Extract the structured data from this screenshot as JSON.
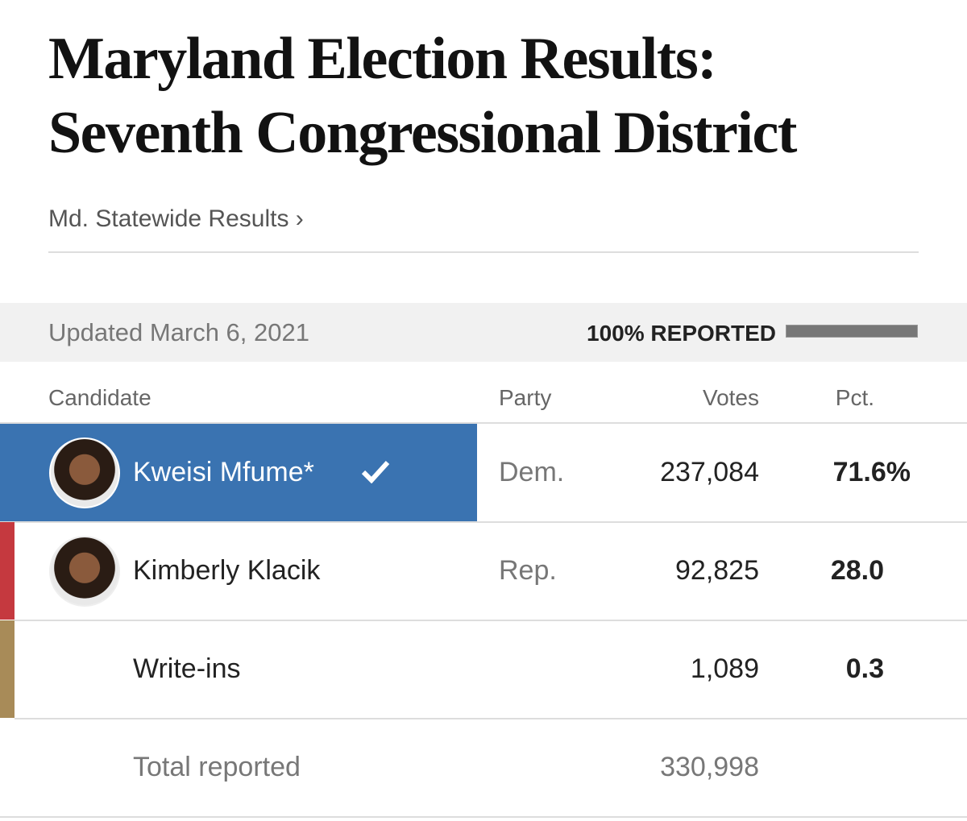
{
  "header": {
    "title": [
      "Maryland Election Results:",
      "Seventh Congressional District"
    ],
    "link": "Md. Statewide Results ›"
  },
  "status": {
    "updated": "Updated March 6, 2021",
    "reported": "100% REPORTED"
  },
  "table": {
    "columns": [
      "Candidate",
      "Party",
      "Votes",
      "Pct."
    ],
    "rows": [
      {
        "candidate": "Kweisi Mfume*",
        "party": "Dem.",
        "votes": "237,084",
        "pct": "71.6%",
        "winner": true,
        "photo": true,
        "color": "#3a73b1"
      },
      {
        "candidate": "Kimberly Klacik",
        "party": "Rep.",
        "votes": "92,825",
        "pct": "28.0",
        "winner": false,
        "photo": true,
        "color": "#c5393f"
      },
      {
        "candidate": "Write-ins",
        "party": "",
        "votes": "1,089",
        "pct": "0.3",
        "winner": false,
        "photo": false,
        "color": "#a88b58"
      }
    ],
    "total": {
      "label": "Total reported",
      "votes": "330,998"
    }
  }
}
